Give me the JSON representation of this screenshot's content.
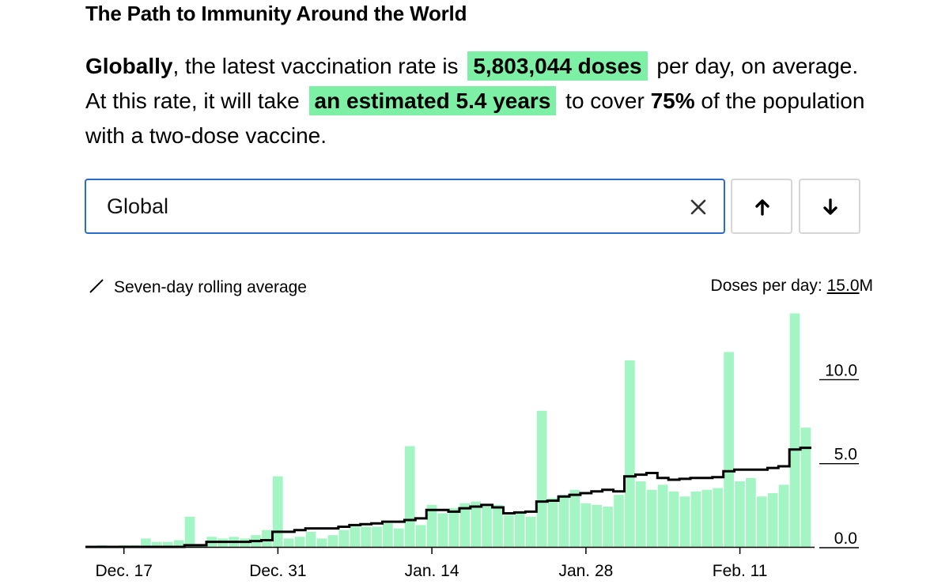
{
  "title": "The Path to Immunity Around the World",
  "summary": {
    "lead": "Globally",
    "t1": ", the latest vaccination rate is",
    "rate": "5,803,044 doses",
    "t2": "per day, on average. At this rate, it will take",
    "time": "an estimated 5.4 years",
    "t3": "to cover",
    "coverage": "75%",
    "t4": "of the population with a two-dose vaccine."
  },
  "search": {
    "value": "Global"
  },
  "controls": {
    "clear_icon": "close-icon",
    "up_icon": "arrow-up-icon",
    "down_icon": "arrow-down-icon"
  },
  "legend": {
    "label": "Seven-day rolling average",
    "icon": "diagonal-line-icon"
  },
  "axis_title": {
    "prefix": "Doses per day:",
    "top_value": "15.0",
    "unit": "M"
  },
  "colors": {
    "bar": "#a3f6c3",
    "highlight": "#7ef0a5",
    "line": "#000000",
    "input_border": "#2b6bd0"
  },
  "chart_data": {
    "type": "bar",
    "ylabel": "Doses per day",
    "ylim": [
      0,
      15
    ],
    "yticks": [
      {
        "value": 0,
        "label": "0.0"
      },
      {
        "value": 5,
        "label": "5.0"
      },
      {
        "value": 10,
        "label": "10.0"
      },
      {
        "value": 15,
        "label": "15.0"
      }
    ],
    "xticks": [
      {
        "index": 3,
        "label": "Dec. 17"
      },
      {
        "index": 17,
        "label": "Dec. 31"
      },
      {
        "index": 31,
        "label": "Jan. 14"
      },
      {
        "index": 45,
        "label": "Jan. 28"
      },
      {
        "index": 59,
        "label": "Feb. 11"
      }
    ],
    "series": [
      {
        "name": "Doses per day",
        "type": "bar",
        "values": [
          0,
          0.1,
          0.05,
          0.1,
          0.1,
          0.5,
          0.3,
          0.3,
          0.4,
          1.8,
          0.1,
          0.6,
          0.5,
          0.6,
          0.5,
          0.7,
          1.0,
          4.2,
          0.5,
          0.6,
          0.9,
          0.5,
          0.7,
          1.0,
          1.2,
          1.2,
          1.2,
          1.4,
          1.1,
          6.0,
          1.3,
          2.5,
          2.0,
          2.3,
          2.6,
          2.7,
          2.4,
          2.5,
          1.9,
          2.0,
          1.8,
          8.1,
          2.9,
          3.1,
          3.4,
          2.6,
          2.5,
          2.4,
          3.1,
          11.1,
          3.9,
          3.4,
          3.7,
          3.3,
          3.0,
          3.3,
          3.4,
          3.5,
          11.6,
          3.9,
          4.1,
          3.0,
          3.2,
          3.7,
          13.9,
          7.1
        ]
      },
      {
        "name": "Seven-day rolling average",
        "type": "step-line",
        "values": [
          0,
          0,
          0,
          0,
          0,
          0,
          0,
          0,
          0,
          0.1,
          0.1,
          0.3,
          0.3,
          0.3,
          0.3,
          0.35,
          0.4,
          0.9,
          0.9,
          1.0,
          1.1,
          1.1,
          1.1,
          1.2,
          1.3,
          1.35,
          1.4,
          1.5,
          1.5,
          1.6,
          1.7,
          2.2,
          2.2,
          2.1,
          2.3,
          2.4,
          2.5,
          2.35,
          2.0,
          2.05,
          2.1,
          2.7,
          2.75,
          3.0,
          3.1,
          3.2,
          3.3,
          3.4,
          3.3,
          4.2,
          4.3,
          4.4,
          4.1,
          4.0,
          4.05,
          4.1,
          4.1,
          4.15,
          4.5,
          4.6,
          4.6,
          4.6,
          4.7,
          4.8,
          5.8,
          5.9
        ]
      }
    ]
  }
}
